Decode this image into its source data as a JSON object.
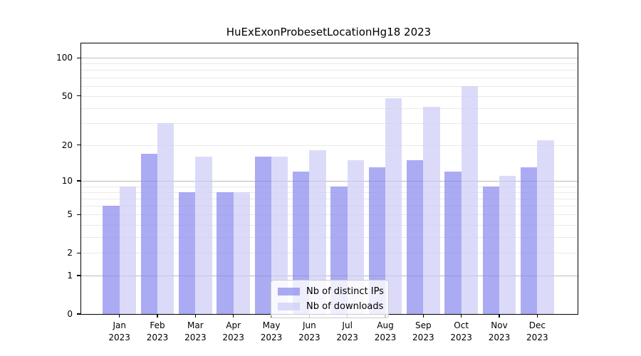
{
  "chart_data": {
    "type": "bar",
    "title": "HuExExonProbesetLocationHg18 2023",
    "year": "2023",
    "categories": [
      "Jan",
      "Feb",
      "Mar",
      "Apr",
      "May",
      "Jun",
      "Jul",
      "Aug",
      "Sep",
      "Oct",
      "Nov",
      "Dec"
    ],
    "series": [
      {
        "name": "Nb of distinct IPs",
        "color": "#8888ee",
        "alpha": 0.7,
        "values": [
          6,
          17,
          8,
          8,
          16,
          12,
          9,
          13,
          15,
          12,
          9,
          13
        ]
      },
      {
        "name": "Nb of downloads",
        "color": "#ccccf7",
        "alpha": 0.7,
        "values": [
          9,
          30,
          16,
          8,
          16,
          18,
          15,
          48,
          41,
          60,
          11,
          22
        ]
      }
    ],
    "yscale": "log1p",
    "ylim": [
      0,
      130
    ],
    "ytick_values": [
      100,
      50,
      20,
      10,
      5,
      2,
      1,
      0
    ],
    "ytick_labels": [
      "100",
      "50",
      "20",
      "10",
      "5",
      "2",
      "1",
      "0"
    ],
    "major_gridlines": [
      1,
      10,
      100
    ],
    "minor_gridlines": [
      2,
      3,
      4,
      5,
      6,
      7,
      8,
      9,
      20,
      30,
      40,
      50,
      60,
      70,
      80,
      90
    ],
    "grid_major_color": "#bbbbbb",
    "grid_minor_color": "#e9e9e9",
    "legend_position": "lower-center",
    "grid": true
  }
}
